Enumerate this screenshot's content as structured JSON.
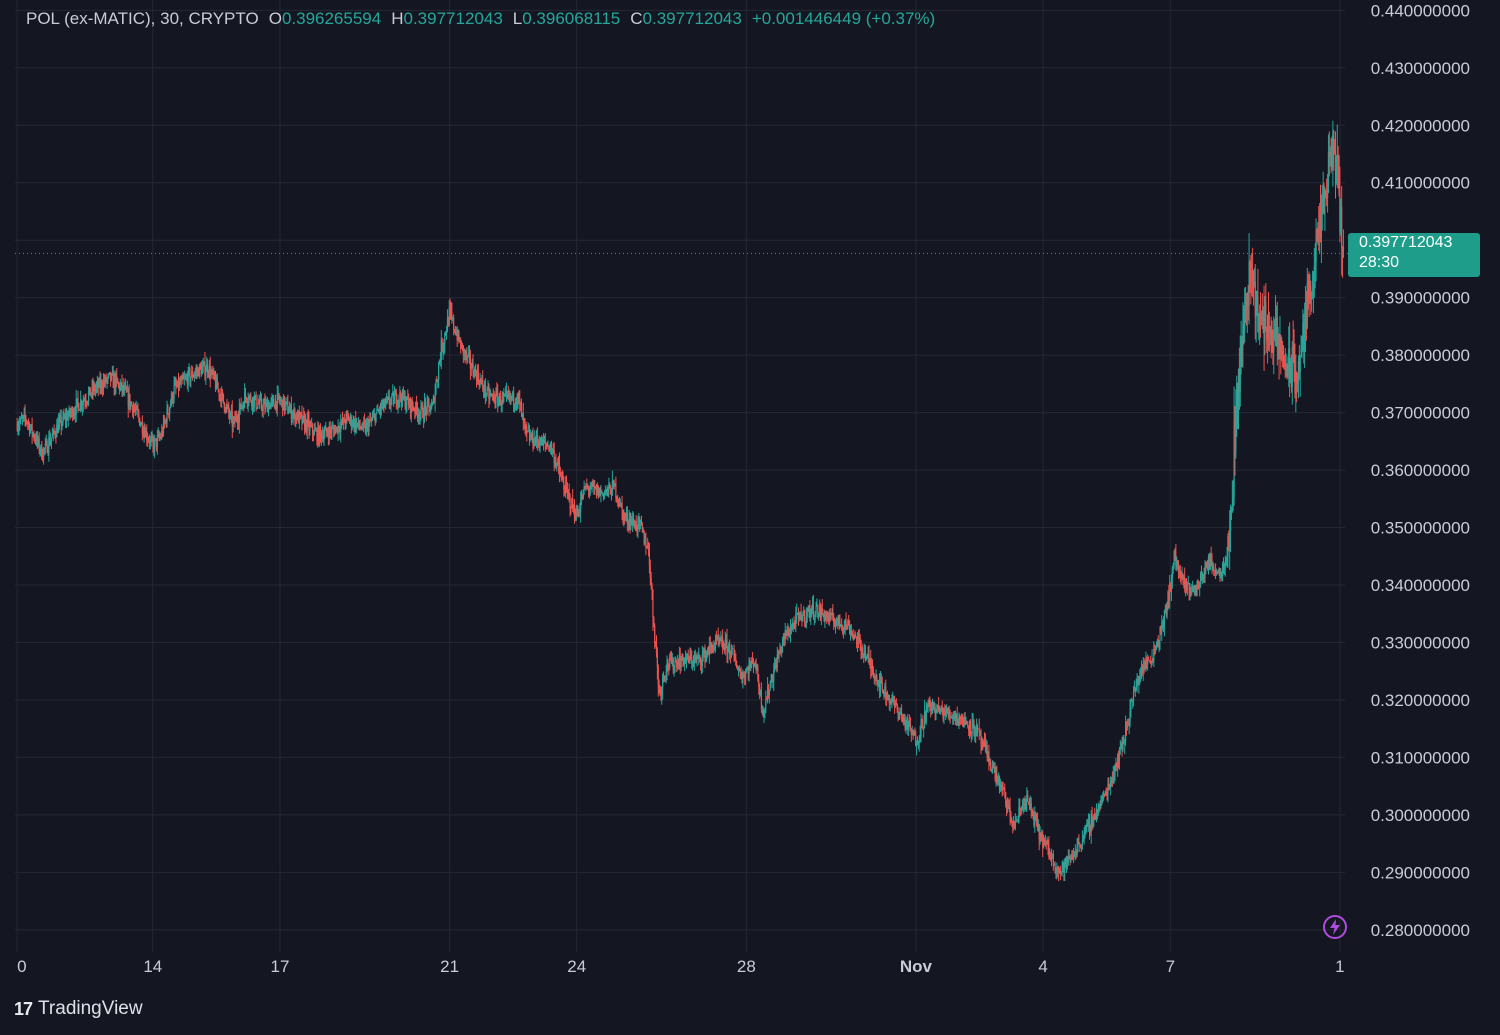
{
  "legend": {
    "symbol": "POL (ex-MATIC), 30, CRYPTO",
    "o_label": "O",
    "o_value": "0.396265594",
    "h_label": "H",
    "h_value": "0.397712043",
    "l_label": "L",
    "l_value": "0.396068115",
    "c_label": "C",
    "c_value": "0.397712043",
    "change": "+0.001446449 (+0.37%)"
  },
  "price_tag": {
    "price": "0.397712043",
    "countdown": "28:30"
  },
  "brand": {
    "name": "TradingView"
  },
  "colors": {
    "background": "#141722",
    "grid": "#242834",
    "up": "#26a69a",
    "down": "#ef5350",
    "tag": "#1e9e8a"
  },
  "chart_data": {
    "type": "candlestick",
    "timeframe": "30",
    "y_ticks": [
      "0.440000000",
      "0.430000000",
      "0.420000000",
      "0.410000000",
      "0.400000000",
      "0.390000000",
      "0.380000000",
      "0.370000000",
      "0.360000000",
      "0.350000000",
      "0.340000000",
      "0.330000000",
      "0.320000000",
      "0.310000000",
      "0.300000000",
      "0.290000000",
      "0.280000000"
    ],
    "y_tick_values": [
      0.44,
      0.43,
      0.42,
      0.41,
      0.4,
      0.39,
      0.38,
      0.37,
      0.36,
      0.35,
      0.34,
      0.33,
      0.32,
      0.31,
      0.3,
      0.29,
      0.28
    ],
    "ylim": [
      0.2704,
      0.4418
    ],
    "x_ticks": [
      "0",
      "14",
      "17",
      "21",
      "24",
      "28",
      "Nov",
      "4",
      "7",
      "1"
    ],
    "x_tick_days": [
      10.8,
      14,
      17,
      21,
      24,
      28,
      32,
      35,
      38,
      42
    ],
    "xlim": [
      10.75,
      42.12
    ],
    "last_price": 0.397712043,
    "price_path": [
      [
        10.8,
        0.368
      ],
      [
        11.0,
        0.369
      ],
      [
        11.4,
        0.363
      ],
      [
        11.8,
        0.368
      ],
      [
        12.2,
        0.371
      ],
      [
        12.6,
        0.374
      ],
      [
        13.0,
        0.376
      ],
      [
        13.3,
        0.374
      ],
      [
        13.6,
        0.37
      ],
      [
        14.0,
        0.364
      ],
      [
        14.2,
        0.366
      ],
      [
        14.5,
        0.374
      ],
      [
        15.0,
        0.377
      ],
      [
        15.3,
        0.378
      ],
      [
        15.6,
        0.373
      ],
      [
        15.9,
        0.368
      ],
      [
        16.2,
        0.373
      ],
      [
        16.6,
        0.371
      ],
      [
        17.0,
        0.372
      ],
      [
        17.3,
        0.37
      ],
      [
        17.6,
        0.368
      ],
      [
        17.9,
        0.366
      ],
      [
        18.3,
        0.367
      ],
      [
        18.6,
        0.369
      ],
      [
        19.0,
        0.367
      ],
      [
        19.4,
        0.371
      ],
      [
        19.8,
        0.373
      ],
      [
        20.3,
        0.37
      ],
      [
        20.6,
        0.371
      ],
      [
        20.8,
        0.381
      ],
      [
        21.0,
        0.387
      ],
      [
        21.3,
        0.381
      ],
      [
        21.6,
        0.377
      ],
      [
        21.9,
        0.373
      ],
      [
        22.3,
        0.372
      ],
      [
        22.6,
        0.373
      ],
      [
        22.8,
        0.366
      ],
      [
        23.1,
        0.365
      ],
      [
        23.4,
        0.364
      ],
      [
        23.7,
        0.357
      ],
      [
        24.0,
        0.352
      ],
      [
        24.2,
        0.357
      ],
      [
        24.6,
        0.356
      ],
      [
        24.9,
        0.357
      ],
      [
        25.1,
        0.352
      ],
      [
        25.5,
        0.35
      ],
      [
        25.7,
        0.346
      ],
      [
        25.8,
        0.335
      ],
      [
        25.95,
        0.321
      ],
      [
        26.1,
        0.326
      ],
      [
        26.5,
        0.327
      ],
      [
        26.9,
        0.327
      ],
      [
        27.3,
        0.33
      ],
      [
        27.6,
        0.329
      ],
      [
        27.9,
        0.324
      ],
      [
        28.2,
        0.327
      ],
      [
        28.4,
        0.318
      ],
      [
        28.6,
        0.324
      ],
      [
        28.9,
        0.331
      ],
      [
        29.2,
        0.334
      ],
      [
        29.6,
        0.336
      ],
      [
        30.0,
        0.334
      ],
      [
        30.4,
        0.333
      ],
      [
        30.8,
        0.328
      ],
      [
        31.2,
        0.322
      ],
      [
        31.6,
        0.318
      ],
      [
        32.0,
        0.313
      ],
      [
        32.3,
        0.319
      ],
      [
        32.6,
        0.318
      ],
      [
        33.0,
        0.317
      ],
      [
        33.4,
        0.315
      ],
      [
        33.7,
        0.31
      ],
      [
        34.0,
        0.305
      ],
      [
        34.3,
        0.298
      ],
      [
        34.6,
        0.303
      ],
      [
        34.9,
        0.297
      ],
      [
        35.1,
        0.294
      ],
      [
        35.4,
        0.29
      ],
      [
        35.7,
        0.293
      ],
      [
        36.0,
        0.297
      ],
      [
        36.3,
        0.301
      ],
      [
        36.6,
        0.306
      ],
      [
        36.9,
        0.313
      ],
      [
        37.1,
        0.32
      ],
      [
        37.3,
        0.325
      ],
      [
        37.6,
        0.328
      ],
      [
        37.9,
        0.335
      ],
      [
        38.1,
        0.345
      ],
      [
        38.3,
        0.34
      ],
      [
        38.6,
        0.339
      ],
      [
        38.9,
        0.344
      ],
      [
        39.2,
        0.342
      ],
      [
        39.4,
        0.348
      ],
      [
        39.55,
        0.37
      ],
      [
        39.75,
        0.387
      ],
      [
        39.9,
        0.395
      ],
      [
        40.1,
        0.386
      ],
      [
        40.4,
        0.384
      ],
      [
        40.7,
        0.379
      ],
      [
        41.0,
        0.376
      ],
      [
        41.3,
        0.392
      ],
      [
        41.6,
        0.405
      ],
      [
        41.85,
        0.417
      ],
      [
        42.0,
        0.4055
      ],
      [
        42.1,
        0.3977
      ]
    ]
  }
}
